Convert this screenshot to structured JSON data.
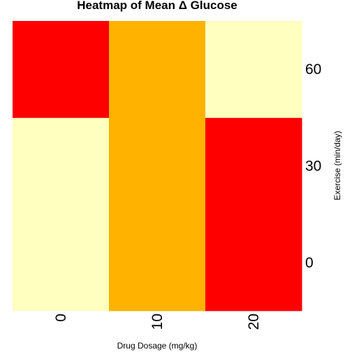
{
  "chart_data": {
    "type": "heatmap",
    "title": "Heatmap of Mean Δ Glucose",
    "xlabel": "Drug Dosage (mg/kg)",
    "ylabel": "Exercise (min/day)",
    "x_categories": [
      "0",
      "10",
      "20"
    ],
    "y_categories": [
      "0",
      "30",
      "60"
    ],
    "colors": {
      "high": "#ff0000",
      "mid": "#ffb300",
      "low": "#ffffc0"
    },
    "cells": [
      {
        "x": "0",
        "y": "0",
        "level": "low"
      },
      {
        "x": "10",
        "y": "0",
        "level": "mid"
      },
      {
        "x": "20",
        "y": "0",
        "level": "high"
      },
      {
        "x": "0",
        "y": "30",
        "level": "low"
      },
      {
        "x": "10",
        "y": "30",
        "level": "mid"
      },
      {
        "x": "20",
        "y": "30",
        "level": "high"
      },
      {
        "x": "0",
        "y": "60",
        "level": "high"
      },
      {
        "x": "10",
        "y": "60",
        "level": "mid"
      },
      {
        "x": "20",
        "y": "60",
        "level": "low"
      }
    ]
  }
}
